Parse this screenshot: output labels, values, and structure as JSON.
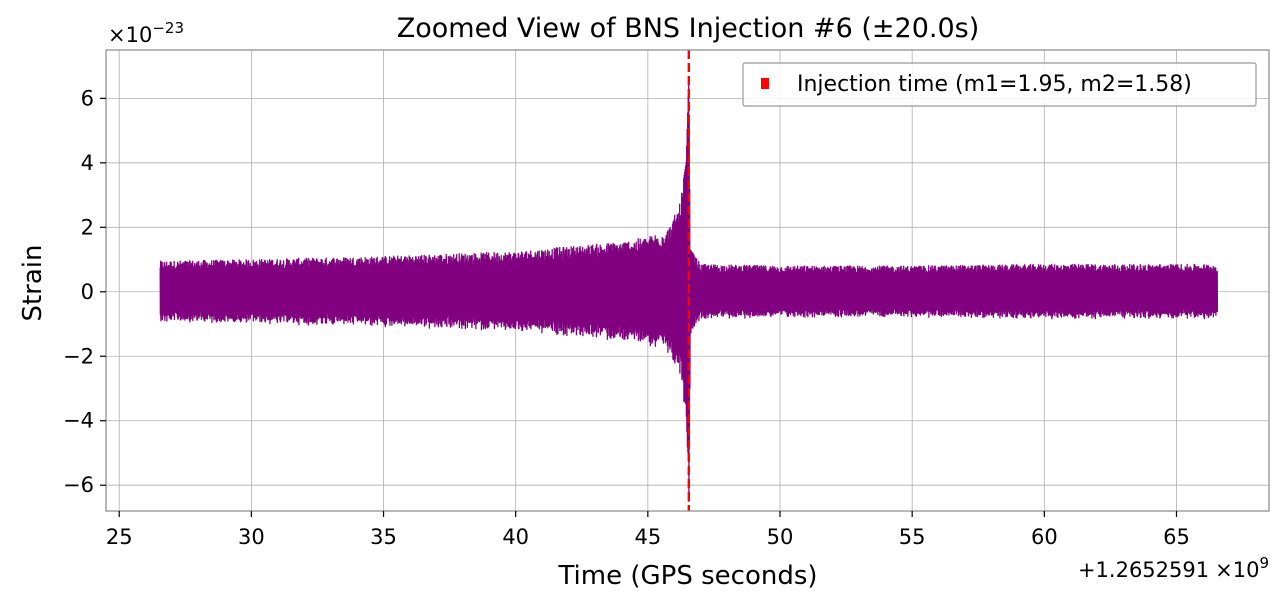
{
  "chart_data": {
    "type": "line",
    "title": "Zoomed View of BNS Injection #6 (±20.0s)",
    "xlabel": "Time (GPS seconds)",
    "ylabel": "Strain",
    "x_offset_label": "+1.2652591",
    "x_offset_exp_label": "×10",
    "x_offset_exp": "9",
    "y_scale_label": "×10",
    "y_scale_exp": "−23",
    "xlim": [
      24.5,
      68.5
    ],
    "ylim": [
      -6.8,
      7.5
    ],
    "x_ticks": [
      25,
      30,
      35,
      40,
      45,
      50,
      55,
      60,
      65
    ],
    "x_tick_labels": [
      "25",
      "30",
      "35",
      "40",
      "45",
      "50",
      "55",
      "60",
      "65"
    ],
    "y_ticks": [
      -6,
      -4,
      -2,
      0,
      2,
      4,
      6
    ],
    "y_tick_labels": [
      "−6",
      "−4",
      "−2",
      "0",
      "2",
      "4",
      "6"
    ],
    "grid": true,
    "series": [
      {
        "name": "strain",
        "color": "#800080",
        "x_range": [
          26.55,
          66.55
        ],
        "envelope_x": [
          26.55,
          30,
          35,
          40,
          42,
          44,
          45,
          45.8,
          46.2,
          46.45,
          46.55,
          46.6,
          47,
          50,
          55,
          60,
          66.55
        ],
        "envelope_amp": [
          0.95,
          1.0,
          1.1,
          1.25,
          1.4,
          1.55,
          1.7,
          2.0,
          2.7,
          4.0,
          6.7,
          1.3,
          0.85,
          0.8,
          0.8,
          0.85,
          0.85
        ]
      }
    ],
    "injection": {
      "x": 46.55,
      "label": "Injection time (m1=1.95, m2=1.58)",
      "color": "#ff0000",
      "style": "dashed"
    },
    "legend": {
      "placement": "top-right",
      "entries": [
        "Injection time (m1=1.95, m2=1.58)"
      ]
    }
  }
}
